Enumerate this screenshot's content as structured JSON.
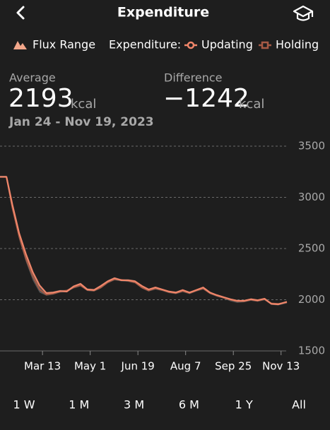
{
  "header": {
    "title": "Expenditure"
  },
  "summary": {
    "average_label": "Average",
    "average_value": "2193",
    "average_unit": "kcal",
    "difference_label": "Difference",
    "difference_value": "−1242",
    "difference_unit": "kcal",
    "date_range": "Jan 24 - Nov 19, 2023"
  },
  "chart_data": {
    "type": "line",
    "legend_title": "Expenditure:",
    "x": [
      "Jan 24",
      "Feb 1",
      "Feb 4",
      "Feb 10",
      "Feb 17",
      "Feb 24",
      "Mar 3",
      "Mar 10",
      "Mar 17",
      "Mar 24",
      "Mar 31",
      "Apr 7",
      "Apr 14",
      "Apr 21",
      "Apr 28",
      "May 5",
      "May 12",
      "May 19",
      "May 26",
      "Jun 2",
      "Jun 9",
      "Jun 16",
      "Jun 23",
      "Jun 30",
      "Jul 7",
      "Jul 14",
      "Jul 21",
      "Jul 28",
      "Aug 4",
      "Aug 11",
      "Aug 18",
      "Aug 25",
      "Sep 1",
      "Sep 8",
      "Sep 15",
      "Sep 22",
      "Sep 29",
      "Oct 6",
      "Oct 13",
      "Oct 20",
      "Oct 27",
      "Nov 3",
      "Nov 10",
      "Nov 19"
    ],
    "xlim": [
      "Jan 24",
      "Nov 19"
    ],
    "xticks": [
      "Mar 13",
      "May 1",
      "Jun 19",
      "Aug 7",
      "Sep 25",
      "Nov 13"
    ],
    "ylim": [
      1500,
      3500
    ],
    "yticks": [
      1500,
      2000,
      2500,
      3000,
      3500
    ],
    "grid": true,
    "flux_range": {
      "name": "Flux Range",
      "color": "#5a5a5a",
      "legend_color": "#f2a68a",
      "lower": [
        3200,
        3200,
        3200,
        2880,
        2590,
        2370,
        2190,
        2070,
        2040,
        2050,
        2070,
        2075,
        2110,
        2130,
        2085,
        2080,
        2110,
        2160,
        2190,
        2180,
        2175,
        2160,
        2110,
        2080,
        2100,
        2085,
        2065,
        2055,
        2075,
        2055,
        2080,
        2100,
        2055,
        2030,
        2010,
        1985,
        1970,
        1975,
        1990,
        1980,
        1995,
        1950,
        1945,
        1965
      ],
      "upper": [
        3210,
        3210,
        3210,
        2940,
        2660,
        2450,
        2280,
        2150,
        2075,
        2080,
        2095,
        2095,
        2140,
        2165,
        2110,
        2105,
        2145,
        2190,
        2220,
        2200,
        2200,
        2190,
        2140,
        2105,
        2125,
        2105,
        2085,
        2080,
        2100,
        2080,
        2100,
        2125,
        2080,
        2050,
        2030,
        2010,
        1995,
        1995,
        2010,
        2000,
        2015,
        1970,
        1965,
        1985
      ]
    },
    "series": [
      {
        "name": "Holding",
        "color": "#a65a45",
        "values": [
          3200,
          3200,
          3200,
          2900,
          2620,
          2400,
          2230,
          2100,
          2050,
          2060,
          2080,
          2090,
          2120,
          2140,
          2095,
          2090,
          2120,
          2170,
          2200,
          2195,
          2185,
          2170,
          2120,
          2090,
          2110,
          2095,
          2075,
          2065,
          2085,
          2065,
          2090,
          2110,
          2065,
          2040,
          2020,
          2000,
          1985,
          1985,
          2000,
          1990,
          2005,
          1965,
          1960,
          1975
        ]
      },
      {
        "name": "Updating",
        "color": "#f0866a",
        "values": [
          3200,
          3200,
          3200,
          2930,
          2650,
          2445,
          2270,
          2140,
          2065,
          2070,
          2085,
          2080,
          2130,
          2155,
          2100,
          2095,
          2135,
          2180,
          2210,
          2190,
          2190,
          2180,
          2135,
          2100,
          2120,
          2100,
          2080,
          2070,
          2095,
          2070,
          2095,
          2120,
          2070,
          2045,
          2025,
          2005,
          1990,
          1990,
          2005,
          1995,
          2010,
          1960,
          1955,
          1980
        ]
      }
    ]
  },
  "range_buttons": [
    "1 W",
    "1 M",
    "3 M",
    "6 M",
    "1 Y",
    "All"
  ]
}
